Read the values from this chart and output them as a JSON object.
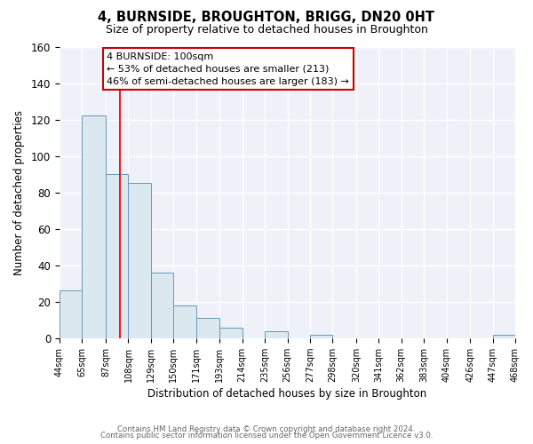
{
  "title": "4, BURNSIDE, BROUGHTON, BRIGG, DN20 0HT",
  "subtitle": "Size of property relative to detached houses in Broughton",
  "xlabel": "Distribution of detached houses by size in Broughton",
  "ylabel": "Number of detached properties",
  "bar_left_edges": [
    44,
    65,
    87,
    108,
    129,
    150,
    171,
    193,
    214,
    235,
    256,
    277,
    298,
    320,
    341,
    362,
    383,
    404,
    426,
    447
  ],
  "bar_widths": [
    21,
    22,
    21,
    21,
    21,
    21,
    22,
    21,
    21,
    21,
    21,
    21,
    22,
    21,
    21,
    21,
    21,
    22,
    21,
    21
  ],
  "bar_heights": [
    26,
    122,
    90,
    85,
    36,
    18,
    11,
    6,
    0,
    4,
    0,
    2,
    0,
    0,
    0,
    0,
    0,
    0,
    0,
    2
  ],
  "bar_color": "#dce8f0",
  "bar_edge_color": "#6699bb",
  "tick_labels": [
    "44sqm",
    "65sqm",
    "87sqm",
    "108sqm",
    "129sqm",
    "150sqm",
    "171sqm",
    "193sqm",
    "214sqm",
    "235sqm",
    "256sqm",
    "277sqm",
    "298sqm",
    "320sqm",
    "341sqm",
    "362sqm",
    "383sqm",
    "404sqm",
    "426sqm",
    "447sqm",
    "468sqm"
  ],
  "ylim": [
    0,
    160
  ],
  "yticks": [
    0,
    20,
    40,
    60,
    80,
    100,
    120,
    140,
    160
  ],
  "red_line_x": 100,
  "annotation_line1": "4 BURNSIDE: 100sqm",
  "annotation_line2": "← 53% of detached houses are smaller (213)",
  "annotation_line3": "46% of semi-detached houses are larger (183) →",
  "bg_color": "#ffffff",
  "plot_bg_color": "#eef2f8",
  "grid_color": "#d0d8e8",
  "footer_line1": "Contains HM Land Registry data © Crown copyright and database right 2024.",
  "footer_line2": "Contains public sector information licensed under the Open Government Licence v3.0."
}
